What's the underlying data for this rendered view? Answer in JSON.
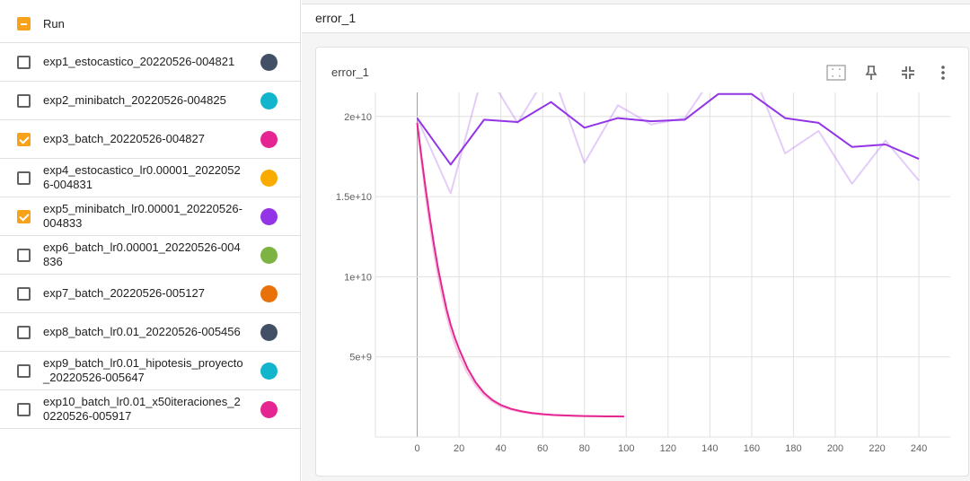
{
  "sidebar": {
    "header_label": "Run",
    "runs": [
      {
        "label": "exp1_estocastico_20220526-004821",
        "checked": false,
        "color": "#425066"
      },
      {
        "label": "exp2_minibatch_20220526-004825",
        "checked": false,
        "color": "#12b5cb"
      },
      {
        "label": "exp3_batch_20220526-004827",
        "checked": true,
        "color": "#e52592"
      },
      {
        "label": "exp4_estocastico_lr0.00001_20220526-004831",
        "checked": false,
        "color": "#f9ab00"
      },
      {
        "label": "exp5_minibatch_lr0.00001_20220526-004833",
        "checked": true,
        "color": "#9334e6"
      },
      {
        "label": "exp6_batch_lr0.00001_20220526-004836",
        "checked": false,
        "color": "#7cb342"
      },
      {
        "label": "exp7_batch_20220526-005127",
        "checked": false,
        "color": "#e8710a"
      },
      {
        "label": "exp8_batch_lr0.01_20220526-005456",
        "checked": false,
        "color": "#425066"
      },
      {
        "label": "exp9_batch_lr0.01_hipotesis_proyecto_20220526-005647",
        "checked": false,
        "color": "#12b5cb"
      },
      {
        "label": "exp10_batch_lr0.01_x50iteraciones_20220526-005917",
        "checked": false,
        "color": "#e52592"
      }
    ]
  },
  "main": {
    "group_title": "error_1",
    "card_title": "error_1",
    "toolbar": {
      "fit_icon": "fit-domain-icon",
      "pin_icon": "pin-icon",
      "collapse_icon": "collapse-icon",
      "more_icon": "more-vert-icon"
    }
  },
  "chart_data": {
    "type": "line",
    "x_ticks": [
      "0",
      "20",
      "40",
      "60",
      "80",
      "100",
      "120",
      "140",
      "160",
      "180",
      "200",
      "220",
      "240"
    ],
    "y_ticks": [
      "5e+9",
      "1e+10",
      "1.5e+10",
      "2e+10"
    ],
    "xlim": [
      -20,
      255
    ],
    "ylim": [
      0,
      21500000000.0
    ],
    "grid": true,
    "series": [
      {
        "color": "#9334e6",
        "raw_x": [
          0,
          16,
          32,
          48,
          64,
          80,
          96,
          112,
          128,
          144,
          160,
          176,
          192,
          208,
          224,
          240
        ],
        "raw_y": [
          19900000000.0,
          15200000000.0,
          23000000000.0,
          19600000000.0,
          23000000000.0,
          17100000000.0,
          20700000000.0,
          19500000000.0,
          19900000000.0,
          23000000000.0,
          23000000000.0,
          17700000000.0,
          19100000000.0,
          15800000000.0,
          18500000000.0,
          16000000000.0
        ],
        "smooth_x": [
          0,
          16,
          32,
          48,
          64,
          80,
          96,
          112,
          128,
          144,
          160,
          176,
          192,
          208,
          224,
          240
        ],
        "smooth_y": [
          19900000000.0,
          17000000000.0,
          19800000000.0,
          19650000000.0,
          20900000000.0,
          19300000000.0,
          19900000000.0,
          19700000000.0,
          19800000000.0,
          21400000000.0,
          21400000000.0,
          19900000000.0,
          19600000000.0,
          18100000000.0,
          18250000000.0,
          17350000000.0
        ]
      },
      {
        "color": "#e52592",
        "raw_x": [
          0,
          2,
          4,
          6,
          8,
          10,
          12,
          14,
          16,
          18,
          20,
          24,
          28,
          32,
          36,
          40,
          45,
          50,
          55,
          60,
          65,
          70,
          75,
          80,
          85,
          90,
          95,
          99
        ],
        "raw_y": [
          19500000000.0,
          17200000000.0,
          15000000000.0,
          13200000000.0,
          11500000000.0,
          10000000000.0,
          8700000000.0,
          7600000000.0,
          6600000000.0,
          5800000000.0,
          5100000000.0,
          4000000000.0,
          3200000000.0,
          2600000000.0,
          2200000000.0,
          1900000000.0,
          1700000000.0,
          1550000000.0,
          1450000000.0,
          1400000000.0,
          1360000000.0,
          1330000000.0,
          1310000000.0,
          1300000000.0,
          1290000000.0,
          1280000000.0,
          1280000000.0,
          1270000000.0
        ],
        "smooth_x": [
          0,
          2,
          4,
          6,
          8,
          10,
          12,
          14,
          16,
          18,
          20,
          24,
          28,
          32,
          36,
          40,
          45,
          50,
          55,
          60,
          65,
          70,
          75,
          80,
          85,
          90,
          95,
          99
        ],
        "smooth_y": [
          19600000000.0,
          17500000000.0,
          15500000000.0,
          13700000000.0,
          12000000000.0,
          10500000000.0,
          9200000000.0,
          8000000000.0,
          7000000000.0,
          6200000000.0,
          5500000000.0,
          4300000000.0,
          3400000000.0,
          2750000000.0,
          2300000000.0,
          2000000000.0,
          1750000000.0,
          1600000000.0,
          1500000000.0,
          1430000000.0,
          1380000000.0,
          1350000000.0,
          1330000000.0,
          1310000000.0,
          1300000000.0,
          1290000000.0,
          1290000000.0,
          1280000000.0
        ]
      }
    ]
  }
}
